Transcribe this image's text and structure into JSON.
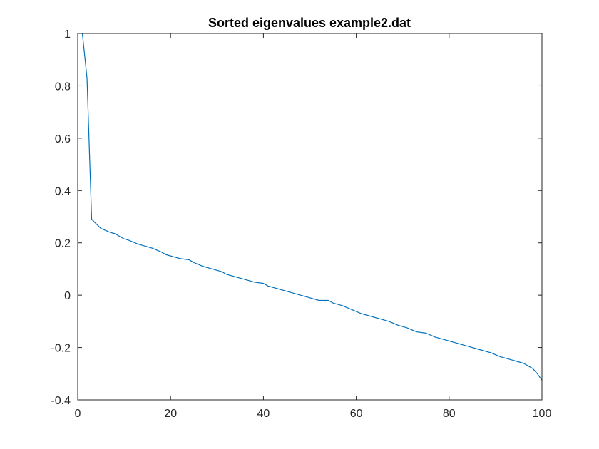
{
  "chart_data": {
    "type": "line",
    "title": "Sorted eigenvalues example2.dat",
    "xlabel": "",
    "ylabel": "",
    "xlim": [
      0,
      100
    ],
    "ylim": [
      -0.4,
      1
    ],
    "xticks": [
      0,
      20,
      40,
      60,
      80,
      100
    ],
    "xtick_labels": [
      "0",
      "20",
      "40",
      "60",
      "80",
      "100"
    ],
    "yticks": [
      -0.4,
      -0.2,
      0,
      0.2,
      0.4,
      0.6,
      0.8,
      1
    ],
    "ytick_labels": [
      "-0.4",
      "-0.2",
      "0",
      "0.2",
      "0.4",
      "0.6",
      "0.8",
      "1"
    ],
    "grid": false,
    "legend": "none",
    "series": [
      {
        "color": "#0072BD",
        "x": [
          1,
          2,
          3,
          5,
          7,
          8,
          10,
          11,
          13,
          15,
          16,
          18,
          19,
          21,
          22,
          24,
          25,
          27,
          29,
          31,
          32,
          34,
          36,
          38,
          40,
          41,
          44,
          46,
          48,
          50,
          52,
          54,
          55,
          57,
          59,
          61,
          63,
          65,
          67,
          69,
          71,
          73,
          75,
          77,
          79,
          81,
          83,
          85,
          87,
          89,
          91,
          93,
          95,
          96,
          98,
          99,
          100
        ],
        "y": [
          1.0,
          0.83,
          0.29,
          0.255,
          0.24,
          0.235,
          0.215,
          0.21,
          0.195,
          0.185,
          0.18,
          0.165,
          0.155,
          0.145,
          0.14,
          0.135,
          0.125,
          0.11,
          0.1,
          0.09,
          0.08,
          0.07,
          0.06,
          0.05,
          0.045,
          0.035,
          0.02,
          0.01,
          0.0,
          -0.01,
          -0.02,
          -0.02,
          -0.03,
          -0.04,
          -0.055,
          -0.07,
          -0.08,
          -0.09,
          -0.1,
          -0.115,
          -0.125,
          -0.14,
          -0.145,
          -0.16,
          -0.17,
          -0.18,
          -0.19,
          -0.2,
          -0.21,
          -0.22,
          -0.235,
          -0.245,
          -0.255,
          -0.26,
          -0.28,
          -0.3,
          -0.325
        ]
      }
    ]
  }
}
